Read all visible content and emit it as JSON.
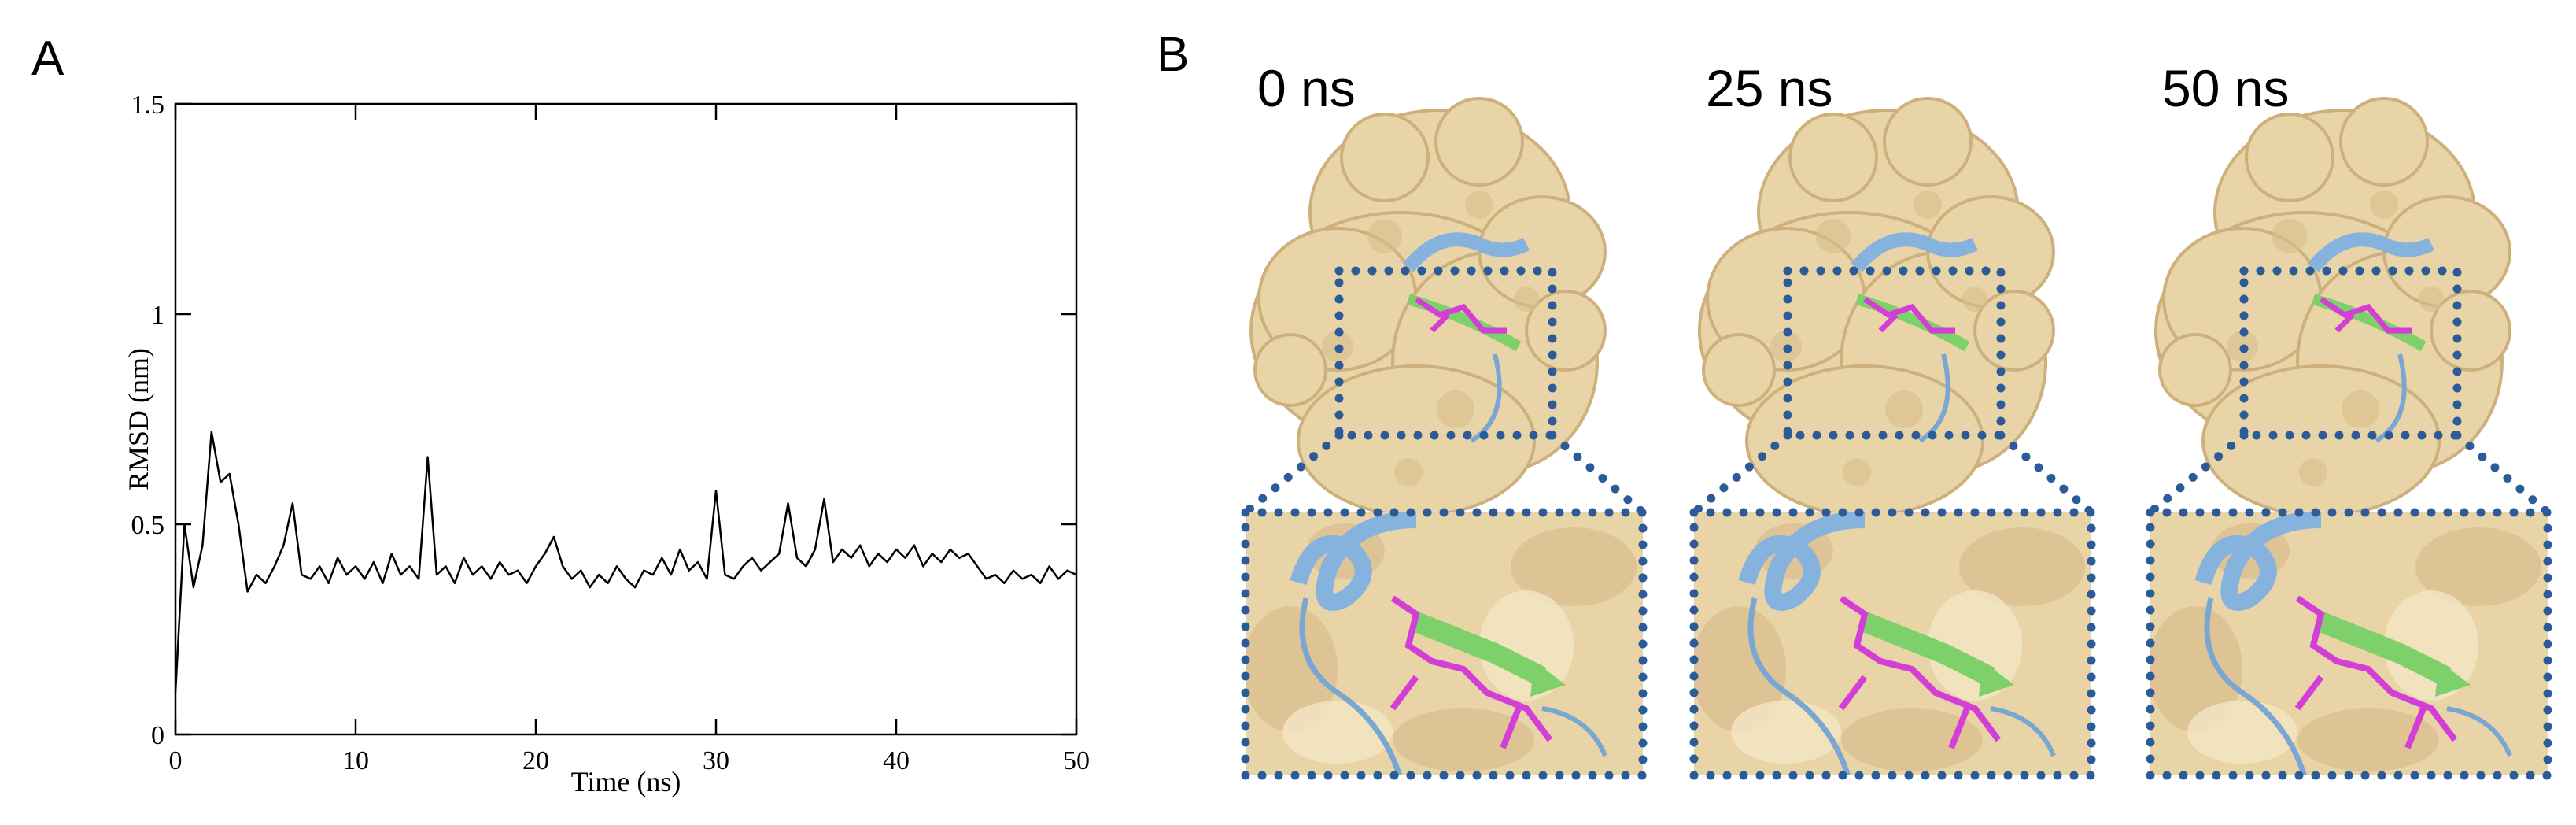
{
  "panel_labels": [
    "A",
    "B"
  ],
  "chart_data": {
    "type": "line",
    "y_label": "RMSD (nm)",
    "x_label": "Time (ns)",
    "color": "#000000",
    "x": [
      0,
      0.5,
      1,
      1.5,
      2,
      2.5,
      3,
      3.5,
      4,
      4.5,
      5,
      5.5,
      6,
      6.5,
      7,
      7.5,
      8,
      8.5,
      9,
      9.5,
      10,
      10.5,
      11,
      11.5,
      12,
      12.5,
      13,
      13.5,
      14,
      14.5,
      15,
      15.5,
      16,
      16.5,
      17,
      17.5,
      18,
      18.5,
      19,
      19.5,
      20,
      20.5,
      21,
      21.5,
      22,
      22.5,
      23,
      23.5,
      24,
      24.5,
      25,
      25.5,
      26,
      26.5,
      27,
      27.5,
      28,
      28.5,
      29,
      29.5,
      30,
      30.5,
      31,
      31.5,
      32,
      32.5,
      33,
      33.5,
      34,
      34.5,
      35,
      35.5,
      36,
      36.5,
      37,
      37.5,
      38,
      38.5,
      39,
      39.5,
      40,
      40.5,
      41,
      41.5,
      42,
      42.5,
      43,
      43.5,
      44,
      44.5,
      45,
      45.5,
      46,
      46.5,
      47,
      47.5,
      48,
      48.5,
      49,
      49.5,
      50
    ],
    "values": [
      0.1,
      0.5,
      0.35,
      0.45,
      0.72,
      0.6,
      0.62,
      0.5,
      0.34,
      0.38,
      0.36,
      0.4,
      0.45,
      0.55,
      0.38,
      0.37,
      0.4,
      0.36,
      0.42,
      0.38,
      0.4,
      0.37,
      0.41,
      0.36,
      0.43,
      0.38,
      0.4,
      0.37,
      0.66,
      0.38,
      0.4,
      0.36,
      0.42,
      0.38,
      0.4,
      0.37,
      0.41,
      0.38,
      0.39,
      0.36,
      0.4,
      0.43,
      0.47,
      0.4,
      0.37,
      0.39,
      0.35,
      0.38,
      0.36,
      0.4,
      0.37,
      0.35,
      0.39,
      0.38,
      0.42,
      0.38,
      0.44,
      0.39,
      0.41,
      0.37,
      0.58,
      0.38,
      0.37,
      0.4,
      0.42,
      0.39,
      0.41,
      0.43,
      0.55,
      0.42,
      0.4,
      0.44,
      0.56,
      0.41,
      0.44,
      0.42,
      0.45,
      0.4,
      0.43,
      0.41,
      0.44,
      0.42,
      0.45,
      0.4,
      0.43,
      0.41,
      0.44,
      0.42,
      0.43,
      0.4,
      0.37,
      0.38,
      0.36,
      0.39,
      0.37,
      0.38,
      0.36,
      0.4,
      0.37,
      0.39,
      0.38
    ],
    "xlim": [
      0,
      50
    ],
    "ylim": [
      0,
      1.5
    ],
    "xticks": [
      0,
      10,
      20,
      30,
      40,
      50
    ],
    "yticks": [
      0,
      0.5,
      1,
      1.5
    ]
  },
  "snapshots": [
    "0 ns",
    "25 ns",
    "50 ns"
  ]
}
